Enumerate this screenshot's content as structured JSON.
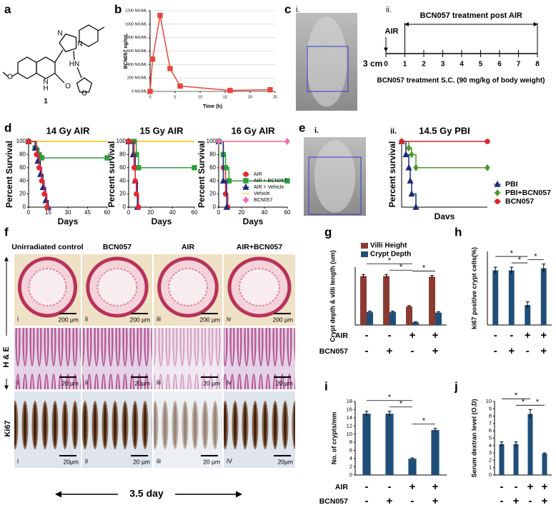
{
  "panel_labels": [
    "a",
    "b",
    "c",
    "d",
    "e",
    "f",
    "g",
    "h",
    "i",
    "j"
  ],
  "structure": {
    "atoms": [
      "O",
      "N",
      "H",
      "O",
      "N",
      "N",
      "HN",
      "O"
    ],
    "compound": "1"
  },
  "imaging_c": {
    "label": "i.",
    "scale": "3 cm"
  },
  "timeline": {
    "label": "ii.",
    "title": "BCN057 treatment post AIR",
    "event": "AIR",
    "ticks": [
      0,
      1,
      2,
      3,
      4,
      5,
      6,
      7,
      8
    ],
    "note": "BCN057 treatment S.C.  (90 mg/kg of body weight)"
  },
  "imaging_e": {
    "label": "i."
  },
  "histology": {
    "columns": [
      "Unirradiated control",
      "BCN057",
      "AIR",
      "AIR+BCN057"
    ],
    "rows": [
      "H & E",
      "Ki67"
    ],
    "numerals": [
      [
        "i",
        "ii",
        "iii",
        "iv"
      ],
      [
        "i",
        "ii",
        "iii",
        "iv"
      ],
      [
        "i",
        "ii",
        "iii",
        "iV"
      ]
    ],
    "scale_bars": [
      [
        "200 µm",
        "200 µm",
        "200 µm",
        "200 µm"
      ],
      [
        "20 µm",
        "20µm",
        "20 µm",
        "20 µm"
      ],
      [
        "20µm",
        "20 µm",
        "20 µm",
        "20µm"
      ]
    ],
    "duration": "3.5 day"
  },
  "chart_data": [
    {
      "type": "line",
      "ylabel": "BCN057 ng/mL",
      "xlabel": "Time (h)",
      "x": [
        0,
        0.5,
        2,
        4,
        6,
        16,
        24
      ],
      "series": [
        {
          "color": "#e8473c",
          "marker": "square",
          "values": [
            0,
            480,
            1130,
            340,
            80,
            15,
            25
          ]
        }
      ],
      "xlim": [
        0,
        25
      ],
      "ylim": [
        0,
        1200
      ],
      "xticks": [
        0,
        5,
        10,
        15,
        20,
        25
      ],
      "yticks": [
        {
          "value": 0,
          "label": "0 NG/ML"
        },
        {
          "value": 200,
          "label": "200 NG/ML"
        },
        {
          "value": 400,
          "label": "400 NG/ML"
        },
        {
          "value": 600,
          "label": "600 NG/ML"
        },
        {
          "value": 800,
          "label": "800 NG/ML"
        },
        {
          "value": 1000,
          "label": "1000 NG/ML"
        },
        {
          "value": 1200,
          "label": "1200 NG/ML"
        }
      ],
      "grid": true
    },
    {
      "type": "line",
      "step": true,
      "title": "14 Gy AIR",
      "ylabel": "Percent Survival",
      "xlabel": "Days",
      "xlim": [
        0,
        60
      ],
      "ylim": [
        0,
        100
      ],
      "xticks": [
        0,
        15,
        30,
        45,
        60
      ],
      "yticks": [
        0,
        20,
        40,
        60,
        80,
        100
      ],
      "series": [
        {
          "color": "#e6c200",
          "x": [
            0,
            60
          ],
          "values": [
            100,
            100
          ]
        },
        {
          "color": "#2e9e3c",
          "marker": "square",
          "x": [
            0,
            5,
            8,
            10,
            60
          ],
          "values": [
            100,
            90,
            80,
            75,
            75
          ]
        },
        {
          "color": "#1b2a7a",
          "marker": "triangle",
          "x": [
            0,
            5,
            7,
            9,
            11,
            13,
            15
          ],
          "values": [
            100,
            90,
            70,
            50,
            30,
            10,
            0
          ]
        },
        {
          "color": "#e8262f",
          "marker": "circle",
          "x": [
            0,
            6,
            8,
            10,
            12,
            14
          ],
          "values": [
            100,
            80,
            60,
            40,
            20,
            0
          ]
        }
      ]
    },
    {
      "type": "line",
      "step": true,
      "title": "15 Gy AIR",
      "ylabel": "Percent survival",
      "xlabel": "Days",
      "xlim": [
        0,
        60
      ],
      "ylim": [
        0,
        100
      ],
      "xticks": [
        0,
        20,
        40,
        60
      ],
      "yticks": [
        0,
        20,
        40,
        60,
        80,
        100
      ],
      "series": [
        {
          "color": "#e6c200",
          "x": [
            0,
            60
          ],
          "values": [
            100,
            100
          ]
        },
        {
          "color": "#2e9e3c",
          "marker": "square",
          "x": [
            0,
            5,
            7,
            9,
            60
          ],
          "values": [
            100,
            100,
            80,
            60,
            60
          ]
        },
        {
          "color": "#1b2a7a",
          "marker": "triangle",
          "x": [
            0,
            4,
            6,
            8
          ],
          "values": [
            100,
            80,
            40,
            0
          ]
        },
        {
          "color": "#e8262f",
          "marker": "circle",
          "x": [
            0,
            5,
            6,
            7,
            9
          ],
          "values": [
            100,
            60,
            40,
            20,
            0
          ]
        }
      ]
    },
    {
      "type": "line",
      "step": true,
      "title": "16 Gy AIR",
      "ylabel": "Percent Survival",
      "xlabel": "Days",
      "xlim": [
        0,
        60
      ],
      "ylim": [
        0,
        100
      ],
      "xticks": [
        0,
        20,
        40,
        60
      ],
      "yticks": [
        0,
        20,
        40,
        60,
        80,
        100
      ],
      "legend": "lower right",
      "series": [
        {
          "name": "AIR",
          "color": "#e8262f",
          "marker": "circle",
          "x": [
            0,
            4,
            6,
            8
          ],
          "values": [
            100,
            60,
            20,
            0
          ]
        },
        {
          "name": "AIR + BCN057",
          "color": "#2e9e3c",
          "marker": "square",
          "x": [
            0,
            4,
            6,
            9,
            60
          ],
          "values": [
            100,
            80,
            60,
            40,
            40
          ]
        },
        {
          "name": "AIR + Vehicle",
          "color": "#1b2a7a",
          "marker": "triangle",
          "x": [
            0,
            4,
            7
          ],
          "values": [
            100,
            40,
            0
          ]
        },
        {
          "name": "Vehicle",
          "color": "#e6c200",
          "x": [
            0,
            60
          ],
          "values": [
            100,
            100
          ]
        },
        {
          "name": "BCN057",
          "color": "#f06bb0",
          "marker": "diamond",
          "x": [
            0,
            60
          ],
          "values": [
            100,
            100
          ]
        }
      ]
    },
    {
      "type": "line",
      "step": true,
      "label": "ii.",
      "title": "14.5 Gy PBI",
      "ylabel": "Percent survival",
      "xlabel": "Davs",
      "xlim": [
        0,
        60
      ],
      "ylim": [
        0,
        100
      ],
      "legend": "outside right",
      "series": [
        {
          "name": "PBI",
          "color": "#1b2a7a",
          "marker": "triangle",
          "x": [
            0,
            3,
            5,
            6,
            7,
            10
          ],
          "values": [
            100,
            80,
            60,
            40,
            20,
            0
          ]
        },
        {
          "name": "PBI+BCN057",
          "color": "#4e9a2e",
          "marker": "diamond",
          "x": [
            0,
            5,
            7,
            10,
            60
          ],
          "values": [
            100,
            90,
            80,
            60,
            60
          ]
        },
        {
          "name": "BCN057",
          "color": "#d9262b",
          "marker": "circle",
          "x": [
            0,
            60
          ],
          "values": [
            100,
            100
          ]
        }
      ]
    },
    {
      "type": "bar",
      "ylabel": "Crypt depth & villi length (um)",
      "ylim": [
        0,
        420
      ],
      "legend": "top",
      "series": [
        {
          "name": "Villi Height",
          "color": "#8b3a32",
          "values": [
            355,
            355,
            135,
            350
          ],
          "errors": [
            12,
            12,
            6,
            10
          ]
        },
        {
          "name": "Crypt Depth",
          "color": "#1f4e79",
          "values": [
            95,
            95,
            20,
            90
          ],
          "errors": [
            6,
            6,
            3,
            6
          ]
        }
      ],
      "factors": [
        {
          "name": "AIR",
          "signs": [
            "-",
            "-",
            "+",
            "+"
          ]
        },
        {
          "name": "BCN057",
          "signs": [
            "-",
            "+",
            "-",
            "+"
          ]
        }
      ],
      "significance": [
        "*",
        "*",
        "*"
      ]
    },
    {
      "type": "bar",
      "ylabel": "ki67 positive crypt cells(%)",
      "ylim": [
        0,
        70
      ],
      "color": "#1f4e79",
      "values": [
        52,
        52,
        19,
        54
      ],
      "errors": [
        3,
        3,
        3,
        4
      ],
      "factors": [
        {
          "signs": [
            "-",
            "-",
            "+",
            "+"
          ]
        },
        {
          "signs": [
            "-",
            "+",
            "-",
            "+"
          ]
        }
      ],
      "significance": [
        "*",
        "*",
        "*"
      ]
    },
    {
      "type": "bar",
      "ylabel": "No. of crypts/mm",
      "ylim": [
        0,
        18
      ],
      "yticks": [
        0,
        2,
        4,
        6,
        8,
        10,
        12,
        14,
        16,
        18
      ],
      "color": "#1f4e79",
      "values": [
        15,
        15,
        4,
        11
      ],
      "errors": [
        0.6,
        0.6,
        0.2,
        0.4
      ],
      "factors": [
        {
          "name": "AIR",
          "signs": [
            "-",
            "-",
            "+",
            "+"
          ]
        },
        {
          "name": "BCN057",
          "signs": [
            "-",
            "+",
            "-",
            "+"
          ]
        }
      ],
      "significance": [
        "*",
        "*",
        "*"
      ]
    },
    {
      "type": "bar",
      "ylabel": "Serum dextran level (O.D)",
      "ylim": [
        0,
        10
      ],
      "yticks": [
        0,
        1,
        2,
        3,
        4,
        5,
        6,
        7,
        8,
        9,
        10
      ],
      "color": "#1f4e79",
      "values": [
        4.2,
        4.2,
        8.3,
        2.9
      ],
      "errors": [
        0.3,
        0.3,
        0.6,
        0.1
      ],
      "factors": [
        {
          "signs": [
            "-",
            "-",
            "+",
            "+"
          ]
        },
        {
          "signs": [
            "-",
            "+",
            "-",
            "+"
          ]
        }
      ],
      "significance": [
        "*",
        "*",
        "*"
      ]
    }
  ]
}
